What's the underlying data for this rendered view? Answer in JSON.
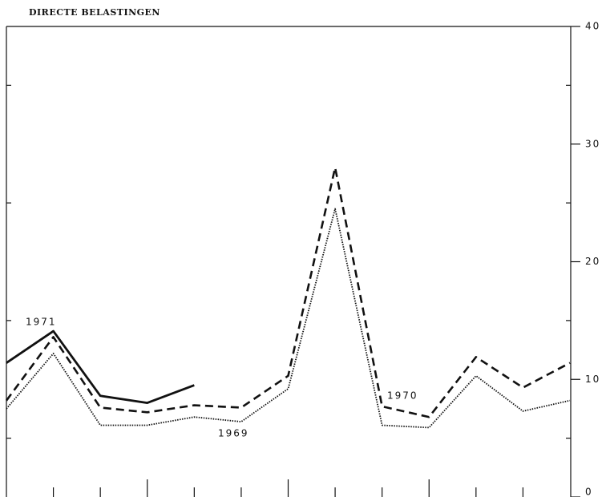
{
  "chart_data": {
    "type": "line",
    "title": "DIRECTE BELASTINGEN",
    "categories": [
      null,
      null,
      null,
      null,
      null,
      null,
      null,
      null,
      null,
      null,
      null,
      null,
      null
    ],
    "series": [
      {
        "name": "1971",
        "color": "#111111",
        "style": "solid",
        "values": [
          11.4,
          14.1,
          8.6,
          8.0,
          9.5,
          null,
          null,
          null,
          null,
          null,
          null,
          null,
          null
        ]
      },
      {
        "name": "1970",
        "color": "#111111",
        "style": "dashed",
        "values": [
          8.2,
          13.6,
          7.6,
          7.2,
          7.8,
          7.6,
          10.3,
          28.0,
          7.7,
          6.8,
          11.9,
          9.3,
          11.4
        ]
      },
      {
        "name": "1969",
        "color": "#111111",
        "style": "dotted",
        "values": [
          7.5,
          12.2,
          6.1,
          6.1,
          6.8,
          6.4,
          9.2,
          24.5,
          6.1,
          5.9,
          10.3,
          7.3,
          8.2
        ]
      }
    ],
    "ylim": [
      0,
      40
    ],
    "yticks": [
      0,
      10,
      20,
      30,
      40
    ],
    "yticks_minor": [
      5,
      15,
      25,
      35
    ]
  }
}
